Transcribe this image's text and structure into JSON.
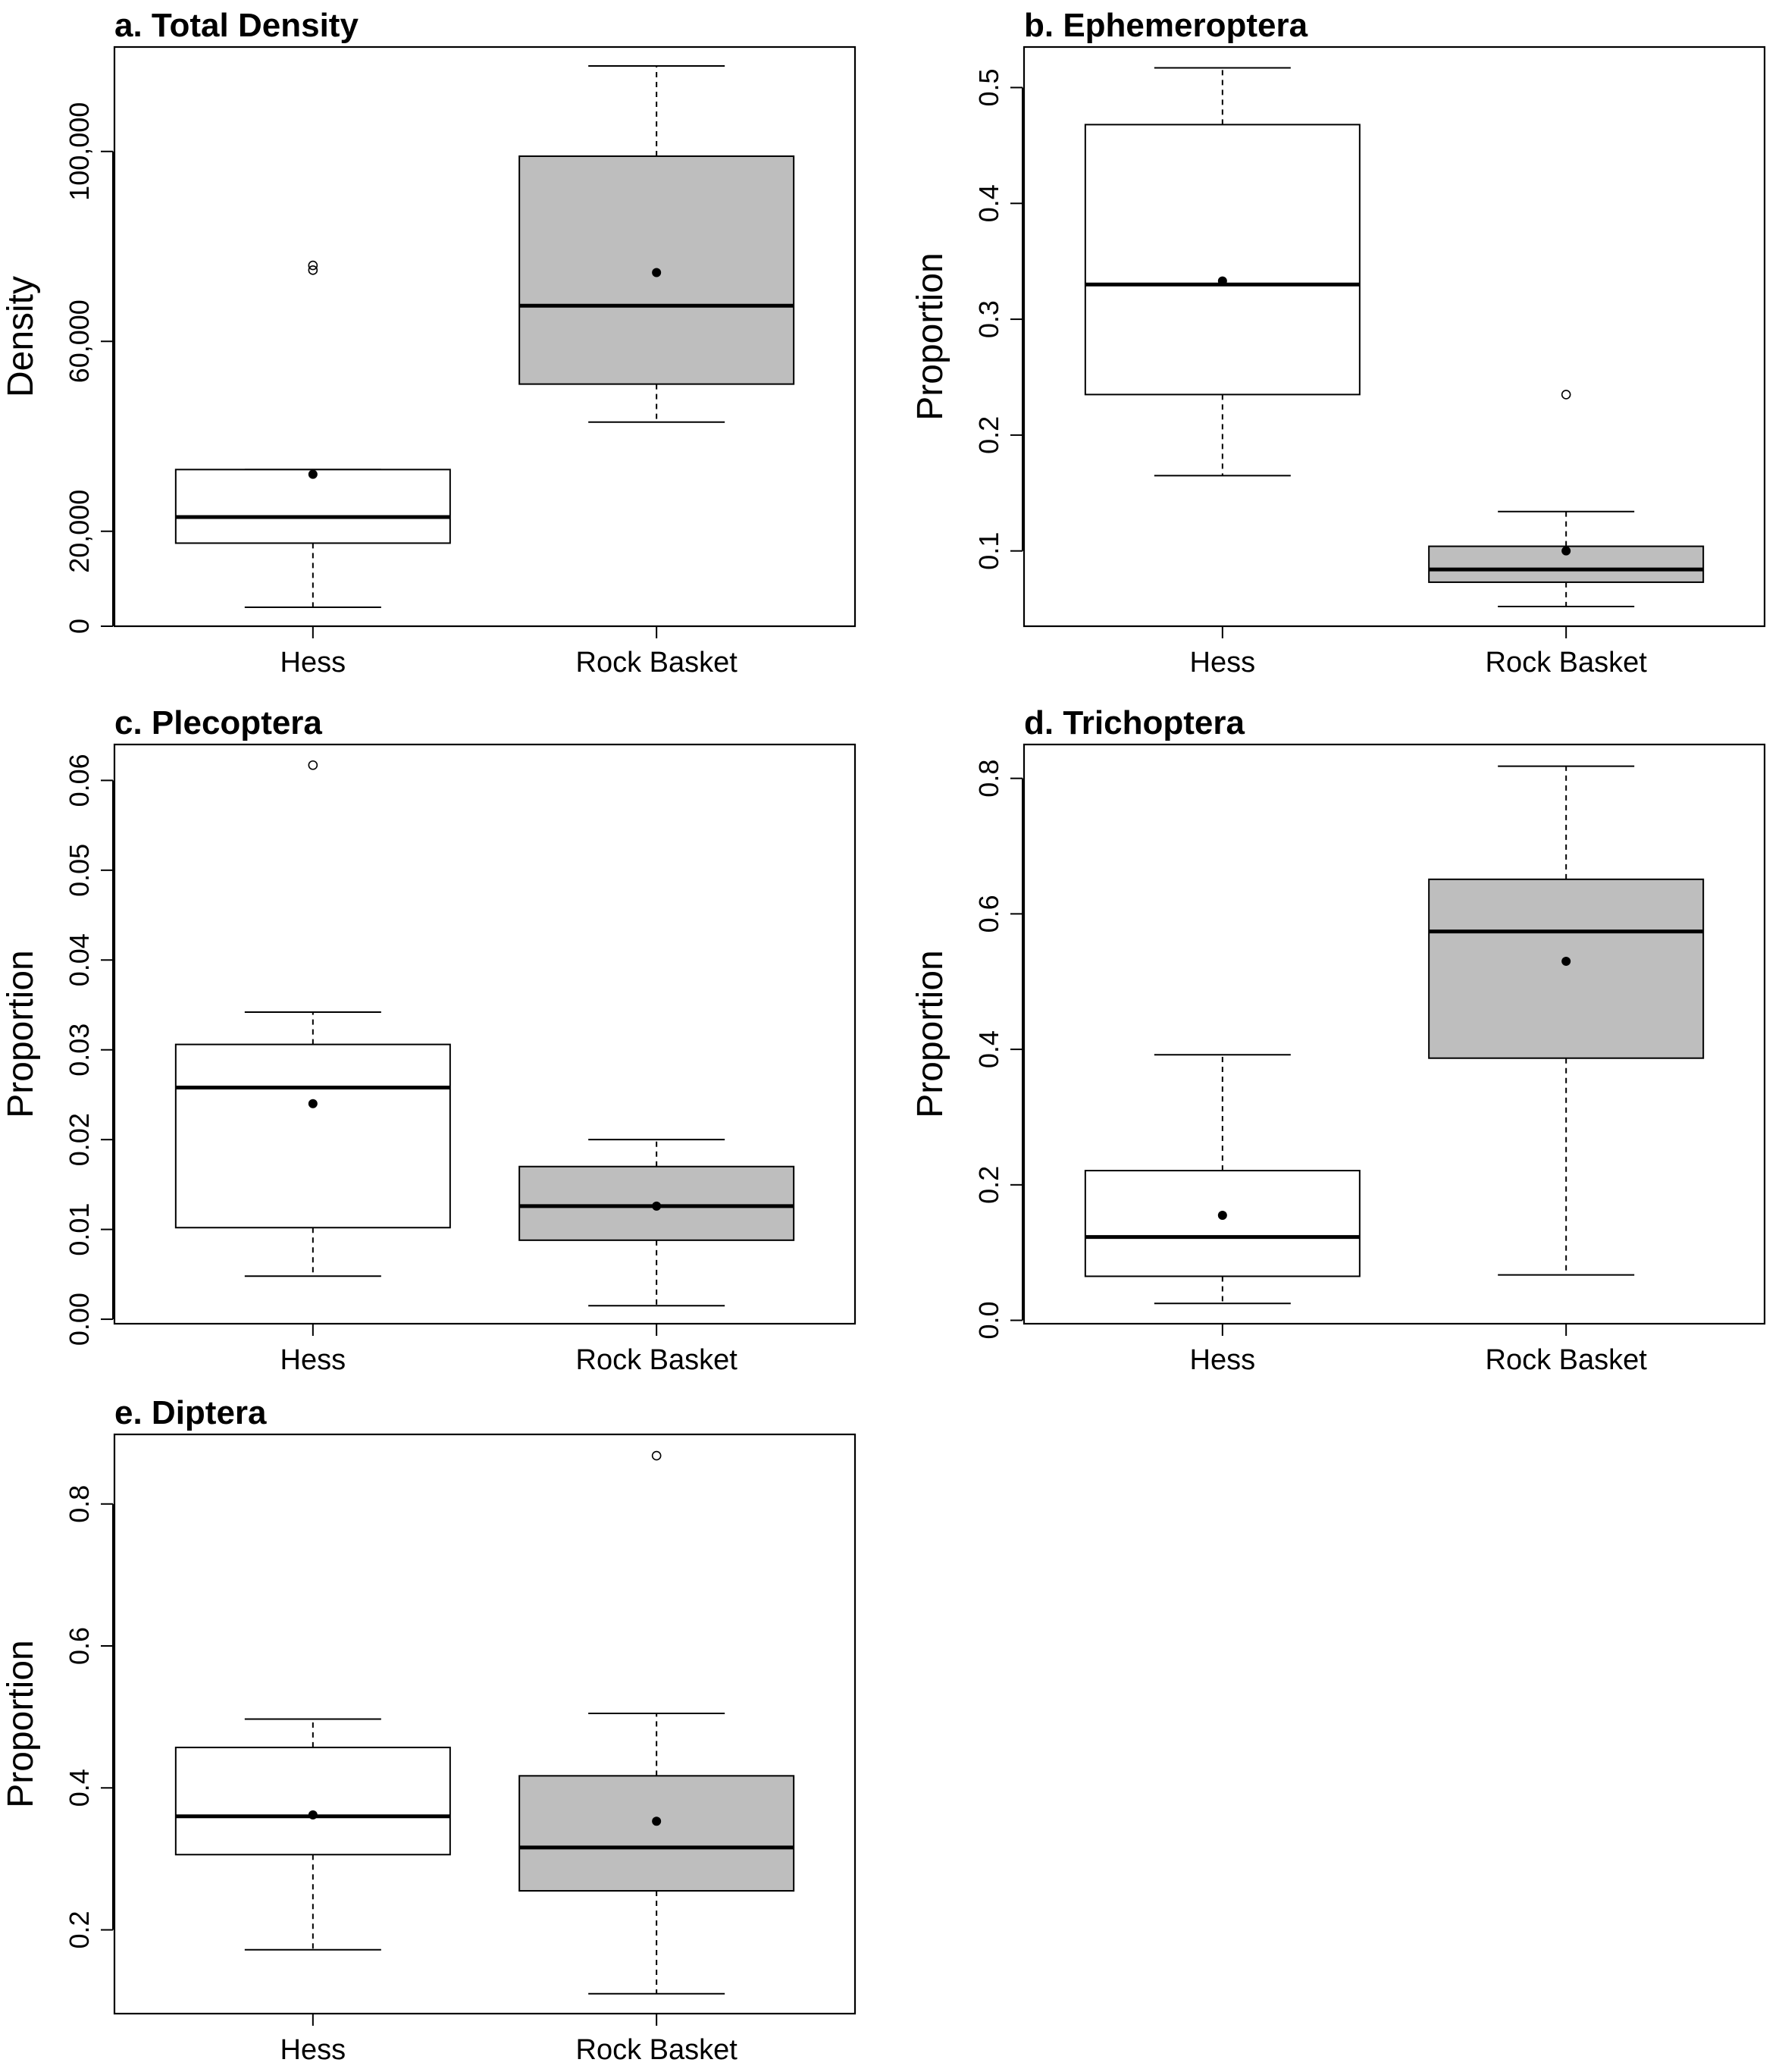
{
  "chart_data": [
    {
      "type": "box",
      "title": "a. Total Density",
      "ylabel": "Density",
      "categories": [
        "Hess",
        "Rock Basket"
      ],
      "ylim": [
        0,
        122000
      ],
      "yticks": [
        0,
        20000,
        60000,
        100000
      ],
      "ytick_labels": [
        "0",
        "20,000",
        "60,000",
        "100,000"
      ],
      "boxes": [
        {
          "category": "Hess",
          "whisker_low": 4000,
          "q1": 17500,
          "median": 23000,
          "q3": 33000,
          "whisker_high": 33000,
          "mean": 32000,
          "outliers": [
            75000,
            76000
          ],
          "fill": "#ffffff"
        },
        {
          "category": "Rock Basket",
          "whisker_low": 43000,
          "q1": 51000,
          "median": 67500,
          "q3": 99000,
          "whisker_high": 118000,
          "mean": 74500,
          "outliers": [],
          "fill": "#bebebe"
        }
      ]
    },
    {
      "type": "box",
      "title": "b. Ephemeroptera",
      "ylabel": "Proportion",
      "categories": [
        "Hess",
        "Rock Basket"
      ],
      "ylim": [
        0.035,
        0.535
      ],
      "yticks": [
        0.1,
        0.2,
        0.3,
        0.4,
        0.5
      ],
      "ytick_labels": [
        "0.1",
        "0.2",
        "0.3",
        "0.4",
        "0.5"
      ],
      "boxes": [
        {
          "category": "Hess",
          "whisker_low": 0.165,
          "q1": 0.235,
          "median": 0.33,
          "q3": 0.468,
          "whisker_high": 0.517,
          "mean": 0.333,
          "outliers": [],
          "fill": "#ffffff"
        },
        {
          "category": "Rock Basket",
          "whisker_low": 0.052,
          "q1": 0.073,
          "median": 0.084,
          "q3": 0.104,
          "whisker_high": 0.134,
          "mean": 0.1,
          "outliers": [
            0.235
          ],
          "fill": "#bebebe"
        }
      ]
    },
    {
      "type": "box",
      "title": "c. Plecoptera",
      "ylabel": "Proportion",
      "categories": [
        "Hess",
        "Rock Basket"
      ],
      "ylim": [
        -0.0005,
        0.064
      ],
      "yticks": [
        0.0,
        0.01,
        0.02,
        0.03,
        0.04,
        0.05,
        0.06
      ],
      "ytick_labels": [
        "0.00",
        "0.01",
        "0.02",
        "0.03",
        "0.04",
        "0.05",
        "0.06"
      ],
      "boxes": [
        {
          "category": "Hess",
          "whisker_low": 0.0048,
          "q1": 0.0102,
          "median": 0.0258,
          "q3": 0.0306,
          "whisker_high": 0.0342,
          "mean": 0.024,
          "outliers": [
            0.0617
          ],
          "fill": "#ffffff"
        },
        {
          "category": "Rock Basket",
          "whisker_low": 0.0015,
          "q1": 0.0088,
          "median": 0.0126,
          "q3": 0.017,
          "whisker_high": 0.02,
          "mean": 0.0126,
          "outliers": [],
          "fill": "#bebebe"
        }
      ]
    },
    {
      "type": "box",
      "title": "d. Trichoptera",
      "ylabel": "Proportion",
      "categories": [
        "Hess",
        "Rock Basket"
      ],
      "ylim": [
        -0.005,
        0.85
      ],
      "yticks": [
        0.0,
        0.2,
        0.4,
        0.6,
        0.8
      ],
      "ytick_labels": [
        "0.0",
        "0.2",
        "0.4",
        "0.6",
        "0.8"
      ],
      "boxes": [
        {
          "category": "Hess",
          "whisker_low": 0.025,
          "q1": 0.065,
          "median": 0.123,
          "q3": 0.221,
          "whisker_high": 0.392,
          "mean": 0.155,
          "outliers": [],
          "fill": "#ffffff"
        },
        {
          "category": "Rock Basket",
          "whisker_low": 0.067,
          "q1": 0.387,
          "median": 0.574,
          "q3": 0.651,
          "whisker_high": 0.818,
          "mean": 0.53,
          "outliers": [],
          "fill": "#bebebe"
        }
      ]
    },
    {
      "type": "box",
      "title": "e. Diptera",
      "ylabel": "Proportion",
      "categories": [
        "Hess",
        "Rock Basket"
      ],
      "ylim": [
        0.082,
        0.898
      ],
      "yticks": [
        0.2,
        0.4,
        0.6,
        0.8
      ],
      "ytick_labels": [
        "0.2",
        "0.4",
        "0.6",
        "0.8"
      ],
      "boxes": [
        {
          "category": "Hess",
          "whisker_low": 0.172,
          "q1": 0.306,
          "median": 0.36,
          "q3": 0.457,
          "whisker_high": 0.497,
          "mean": 0.362,
          "outliers": [],
          "fill": "#ffffff"
        },
        {
          "category": "Rock Basket",
          "whisker_low": 0.11,
          "q1": 0.255,
          "median": 0.316,
          "q3": 0.417,
          "whisker_high": 0.505,
          "mean": 0.353,
          "outliers": [
            0.868
          ],
          "fill": "#bebebe"
        }
      ]
    }
  ]
}
